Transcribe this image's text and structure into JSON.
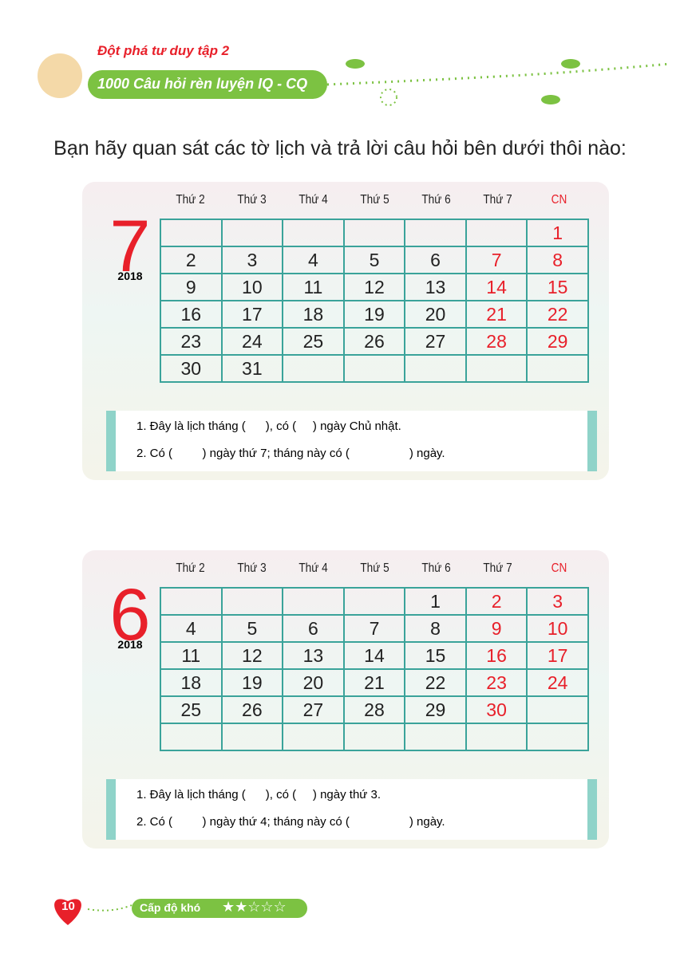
{
  "header": {
    "series": "Đột phá tư duy tập 2",
    "title": "1000 Câu hỏi rèn luyện IQ - CQ"
  },
  "instruction": "Bạn hãy quan sát các tờ lịch và trả lời câu hỏi bên dưới thôi nào:",
  "calendars": [
    {
      "month": "7",
      "year": "2018",
      "weekdays": [
        "Thứ 2",
        "Thứ 3",
        "Thứ 4",
        "Thứ 5",
        "Thứ 6",
        "Thứ 7",
        "CN"
      ],
      "rows": [
        [
          null,
          null,
          null,
          null,
          null,
          null,
          1
        ],
        [
          2,
          3,
          4,
          5,
          6,
          7,
          8
        ],
        [
          9,
          10,
          11,
          12,
          13,
          14,
          15
        ],
        [
          16,
          17,
          18,
          19,
          20,
          21,
          22
        ],
        [
          23,
          24,
          25,
          26,
          27,
          28,
          29
        ],
        [
          30,
          31,
          null,
          null,
          null,
          null,
          null
        ]
      ],
      "questions": [
        "1. Đây là lịch tháng (      ), có (     ) ngày Chủ nhật.",
        "2. Có (         ) ngày thứ 7; tháng này có (                  ) ngày."
      ]
    },
    {
      "month": "6",
      "year": "2018",
      "weekdays": [
        "Thứ 2",
        "Thứ 3",
        "Thứ 4",
        "Thứ 5",
        "Thứ 6",
        "Thứ 7",
        "CN"
      ],
      "rows": [
        [
          null,
          null,
          null,
          null,
          1,
          2,
          3
        ],
        [
          4,
          5,
          6,
          7,
          8,
          9,
          10
        ],
        [
          11,
          12,
          13,
          14,
          15,
          16,
          17
        ],
        [
          18,
          19,
          20,
          21,
          22,
          23,
          24
        ],
        [
          25,
          26,
          27,
          28,
          29,
          30,
          null
        ],
        [
          null,
          null,
          null,
          null,
          null,
          null,
          null
        ]
      ],
      "questions": [
        "1. Đây là lịch tháng (      ), có (     ) ngày thứ 3.",
        "2. Có (         ) ngày thứ 4; tháng này có (                  ) ngày."
      ]
    }
  ],
  "footer": {
    "page": "10",
    "difficulty": "Cấp độ khó",
    "stars": "★★☆☆☆"
  }
}
